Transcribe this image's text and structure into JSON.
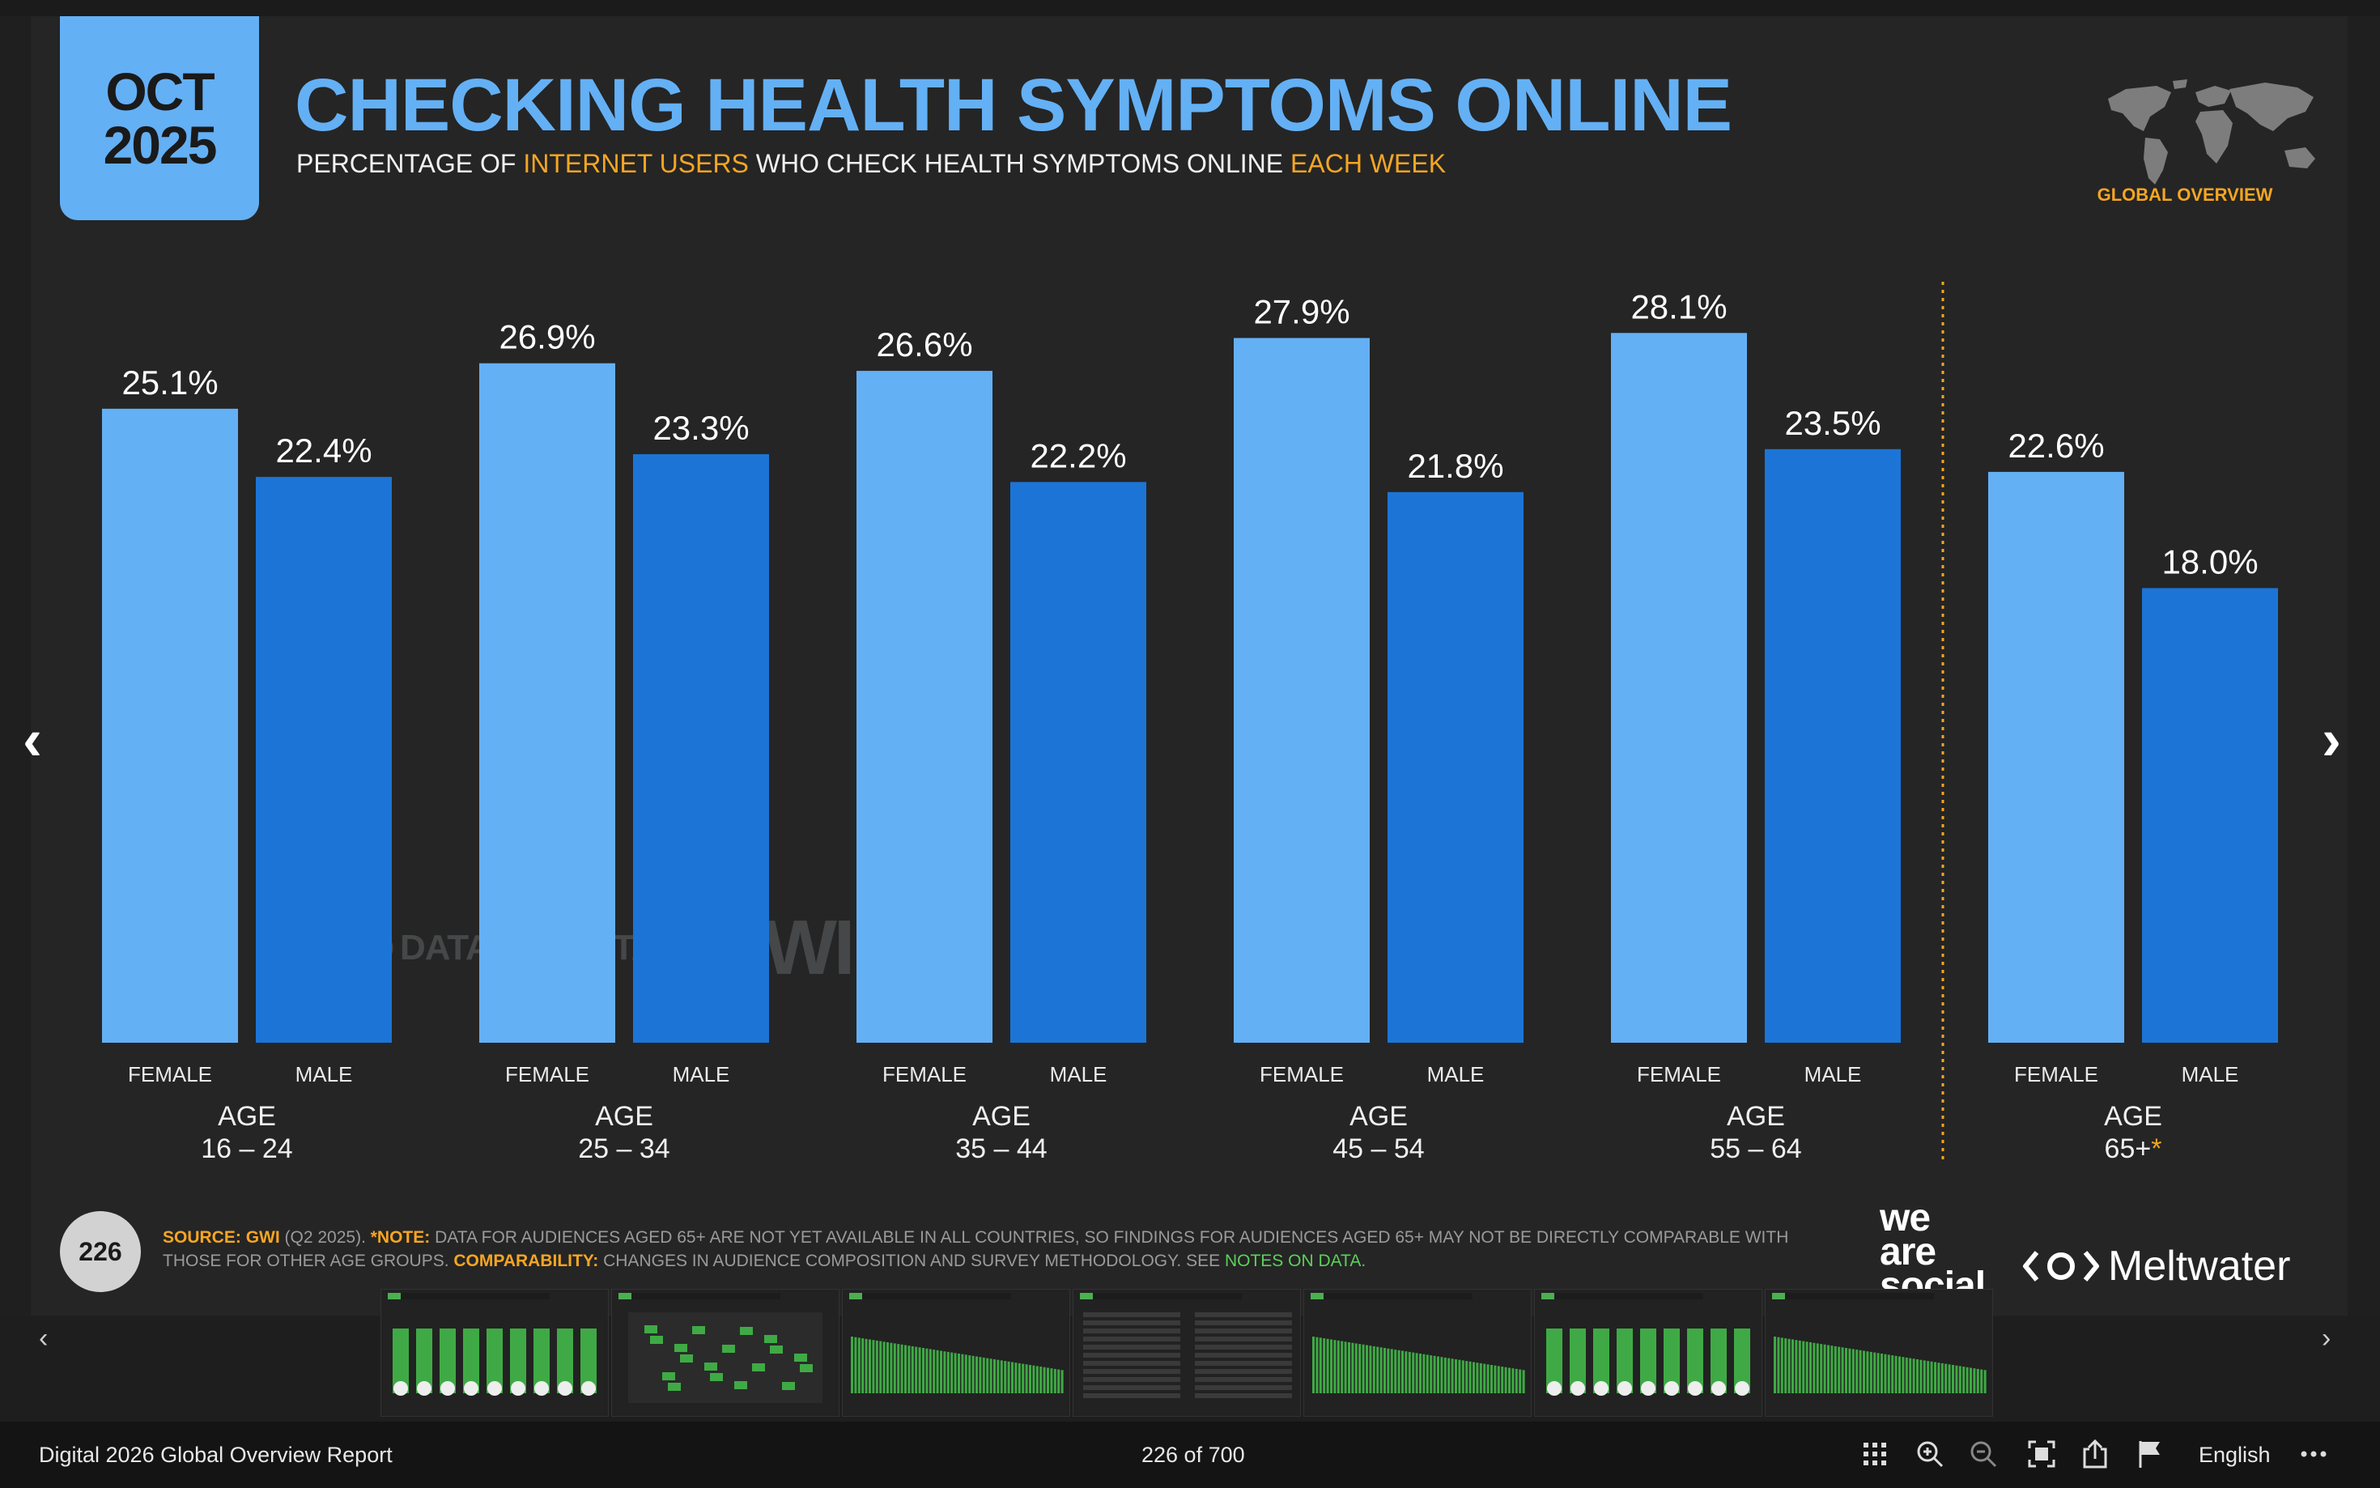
{
  "slide": {
    "badge": {
      "month": "OCT",
      "year": "2025"
    },
    "title": "CHECKING HEALTH SYMPTOMS ONLINE",
    "subtitle": {
      "p1": "PERCENTAGE OF ",
      "h1": "INTERNET USERS",
      "p2": " WHO CHECK HEALTH SYMPTOMS ONLINE ",
      "h2": "EACH WEEK"
    },
    "section_label": "GLOBAL OVERVIEW",
    "page_number": "226",
    "watermark": {
      "datareportal": "DATAREPORTAL",
      "gwi": "GWI."
    },
    "footnote": {
      "source_key": "SOURCE:",
      "source_name": "GWI",
      "source_rest": " (Q2 2025). ",
      "note_key": "*NOTE:",
      "note_text": " DATA FOR AUDIENCES AGED 65+ ARE NOT YET AVAILABLE IN ALL COUNTRIES, SO FINDINGS FOR AUDIENCES AGED 65+ MAY NOT BE DIRECTLY COMPARABLE WITH THOSE FOR OTHER AGE GROUPS. ",
      "comp_key": "COMPARABILITY:",
      "comp_text": " CHANGES IN AUDIENCE COMPOSITION AND SURVEY METHODOLOGY. SEE ",
      "notes_link": "NOTES ON DATA",
      "end": "."
    },
    "brands": {
      "we_are_social": "we\nare\nsocial",
      "meltwater": "Meltwater"
    },
    "colors": {
      "female": "#64b0f5",
      "male": "#1c75d6",
      "accent": "#f5a623",
      "title": "#64b0f5"
    }
  },
  "chart_data": {
    "type": "bar",
    "title": "CHECKING HEALTH SYMPTOMS ONLINE",
    "xlabel": "",
    "ylabel": "",
    "ylim": [
      0,
      30
    ],
    "grid": false,
    "categories": [
      "16 – 24",
      "25 – 34",
      "35 – 44",
      "45 – 54",
      "55 – 64",
      "65+"
    ],
    "group_label": "AGE",
    "sub_labels": [
      "FEMALE",
      "MALE"
    ],
    "series": [
      {
        "name": "FEMALE",
        "values": [
          25.1,
          26.9,
          26.6,
          27.9,
          28.1,
          22.6
        ]
      },
      {
        "name": "MALE",
        "values": [
          22.4,
          23.3,
          22.2,
          21.8,
          23.5,
          18.0
        ]
      }
    ],
    "value_format": "%",
    "asterisk_category": "65+"
  },
  "viewer": {
    "doc_title": "Digital 2026 Global Overview Report",
    "page_indicator": "226 of 700",
    "language": "English",
    "nav": {
      "prev": "‹",
      "next": "›"
    },
    "tools": [
      "grid-icon",
      "zoom-in-icon",
      "zoom-out-icon",
      "fit-screen-icon",
      "share-icon",
      "flag-icon",
      "more-icon"
    ]
  }
}
